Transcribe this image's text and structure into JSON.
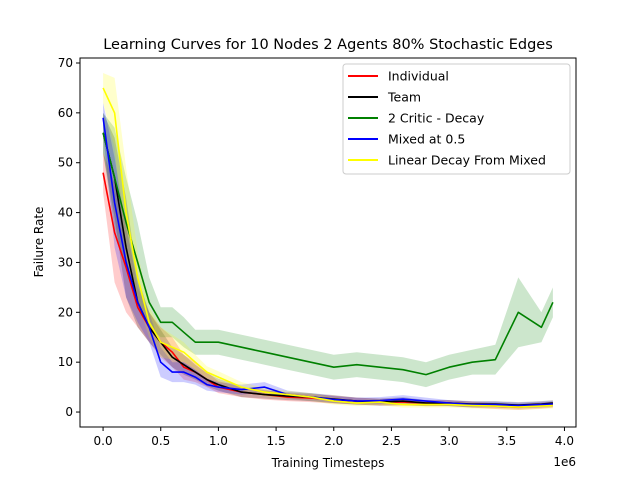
{
  "chart_data": {
    "type": "line",
    "title": "Learning Curves for 10 Nodes 2 Agents 80% Stochastic Edges",
    "xlabel": "Training Timesteps",
    "ylabel": "Failure Rate",
    "x_offset_label": "1e6",
    "xlim": [
      -0.2,
      4.1
    ],
    "ylim": [
      -3,
      71
    ],
    "xticks": [
      0,
      0.5,
      1,
      1.5,
      2,
      2.5,
      3,
      3.5,
      4
    ],
    "xtick_labels": [
      "0.0",
      "0.5",
      "1.0",
      "1.5",
      "2.0",
      "2.5",
      "3.0",
      "3.5",
      "4.0"
    ],
    "yticks": [
      0,
      10,
      20,
      30,
      40,
      50,
      60,
      70
    ],
    "ytick_labels": [
      "0",
      "10",
      "20",
      "30",
      "40",
      "50",
      "60",
      "70"
    ],
    "grid": false,
    "legend_position": "top-right",
    "x": [
      0,
      0.1,
      0.2,
      0.3,
      0.4,
      0.5,
      0.6,
      0.7,
      0.8,
      0.9,
      1.0,
      1.2,
      1.4,
      1.6,
      1.8,
      2.0,
      2.2,
      2.4,
      2.6,
      2.8,
      3.0,
      3.2,
      3.4,
      3.6,
      3.8,
      3.9
    ],
    "series": [
      {
        "name": "Individual",
        "color": "#ff0000",
        "values": [
          48,
          36,
          29,
          21,
          17,
          14,
          12,
          9,
          8,
          6.5,
          5,
          4,
          3.5,
          3,
          2.8,
          2.5,
          2.2,
          2,
          2,
          1.8,
          1.8,
          1.5,
          1.2,
          1,
          1.3,
          1.5
        ],
        "band": [
          4,
          10,
          9,
          4,
          3,
          3,
          3,
          2.5,
          2,
          1.5,
          1.2,
          1,
          1,
          0.8,
          0.8,
          0.8,
          0.7,
          0.7,
          0.7,
          0.6,
          0.6,
          0.6,
          0.6,
          0.6,
          0.6,
          0.6
        ]
      },
      {
        "name": "Team",
        "color": "#000000",
        "values": [
          56,
          47,
          33,
          22,
          17,
          14,
          11,
          9.5,
          8,
          6.5,
          5.5,
          4,
          3.5,
          3.2,
          3,
          2.6,
          2.2,
          2,
          2.2,
          1.8,
          1.8,
          1.6,
          1.6,
          1.4,
          1.6,
          1.8
        ],
        "band": [
          4,
          8,
          10,
          5,
          3,
          2.5,
          2,
          2,
          1.5,
          1.3,
          1.2,
          1,
          0.8,
          0.8,
          0.8,
          0.8,
          0.7,
          0.7,
          0.8,
          0.6,
          0.6,
          0.6,
          0.6,
          0.6,
          0.6,
          0.6
        ]
      },
      {
        "name": "2 Critic - Decay",
        "color": "#008000",
        "values": [
          56,
          47,
          38,
          30,
          22,
          18,
          18,
          16,
          14,
          14,
          14,
          13,
          12,
          11,
          10,
          9,
          9.5,
          9,
          8.5,
          7.5,
          9,
          10,
          10.5,
          20,
          17,
          22
        ],
        "band": [
          4,
          10,
          9,
          8,
          5,
          3,
          3,
          3,
          2.5,
          2.5,
          2.5,
          2.5,
          2.5,
          2.5,
          2.5,
          2.5,
          2.5,
          2.5,
          2.5,
          2.5,
          2.5,
          2.5,
          3,
          7,
          3,
          3
        ]
      },
      {
        "name": "Mixed at 0.5",
        "color": "#0000ff",
        "values": [
          59,
          42,
          30,
          22,
          17,
          10,
          8,
          8,
          7,
          5.5,
          5,
          4.5,
          5,
          3.5,
          3,
          2.5,
          2.2,
          2.3,
          2.6,
          2.2,
          1.8,
          1.5,
          1.5,
          1.3,
          1.5,
          1.6
        ],
        "band": [
          3,
          9,
          7,
          4,
          3,
          3,
          2,
          2,
          1.5,
          1.2,
          1,
          1,
          1,
          0.8,
          0.8,
          0.7,
          0.7,
          0.7,
          0.8,
          0.7,
          0.6,
          0.6,
          0.6,
          0.6,
          0.6,
          0.6
        ]
      },
      {
        "name": "Linear Decay From Mixed",
        "color": "#ffff00",
        "values": [
          65,
          60,
          40,
          27,
          18,
          14,
          13,
          12,
          10,
          8,
          7,
          5,
          4,
          3.5,
          3,
          2.2,
          1.8,
          2,
          1.5,
          1.5,
          1.5,
          1.3,
          1.2,
          1,
          1.2,
          1.3
        ],
        "band": [
          3,
          7,
          9,
          5,
          3,
          3,
          2.5,
          2,
          1.5,
          1.2,
          1.2,
          1,
          0.8,
          0.8,
          0.8,
          0.7,
          0.6,
          0.6,
          0.6,
          0.6,
          0.6,
          0.6,
          0.6,
          0.6,
          0.6,
          0.6
        ]
      }
    ]
  }
}
